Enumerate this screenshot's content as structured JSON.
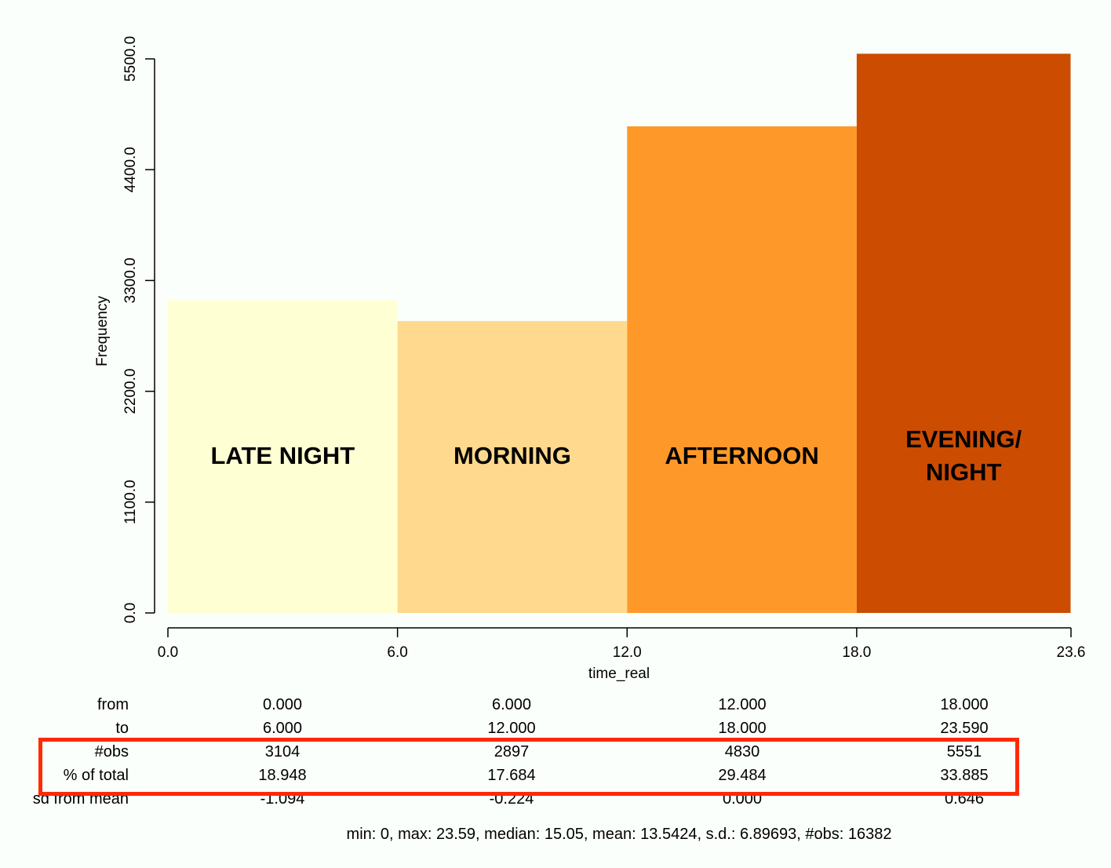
{
  "chart_data": {
    "type": "bar",
    "xlabel": "time_real",
    "ylabel": "Frequency",
    "ylim": [
      0,
      5500
    ],
    "yticks": [
      "0.0",
      "1100.0",
      "2200.0",
      "3300.0",
      "4400.0",
      "5500.0"
    ],
    "xticks": [
      "0.0",
      "6.0",
      "12.0",
      "18.0",
      "23.6"
    ],
    "bins": [
      {
        "from": 0.0,
        "to": 6.0,
        "value": 3104,
        "label": "LATE NIGHT",
        "color": "#ffffd4"
      },
      {
        "from": 6.0,
        "to": 12.0,
        "value": 2897,
        "label": "MORNING",
        "color": "#fed98e"
      },
      {
        "from": 12.0,
        "to": 18.0,
        "value": 4830,
        "label": "AFTERNOON",
        "color": "#fe9929"
      },
      {
        "from": 18.0,
        "to": 23.59,
        "value": 5551,
        "label": "EVENING/\nNIGHT",
        "color": "#cc4c02"
      }
    ]
  },
  "stats_table": {
    "rows": [
      {
        "label": "from",
        "cells": [
          "0.000",
          "6.000",
          "12.000",
          "18.000"
        ]
      },
      {
        "label": "to",
        "cells": [
          "6.000",
          "12.000",
          "18.000",
          "23.590"
        ]
      },
      {
        "label": "#obs",
        "cells": [
          "3104",
          "2897",
          "4830",
          "5551"
        ]
      },
      {
        "label": "% of total",
        "cells": [
          "18.948",
          "17.684",
          "29.484",
          "33.885"
        ]
      },
      {
        "label": "sd from mean",
        "cells": [
          "-1.094",
          "-0.224",
          "0.000",
          "0.646"
        ]
      }
    ]
  },
  "summary": "min: 0, max: 23.59, median: 15.05, mean: 13.5424, s.d.: 6.89693, #obs: 16382",
  "highlight_color": "#ff2a00"
}
